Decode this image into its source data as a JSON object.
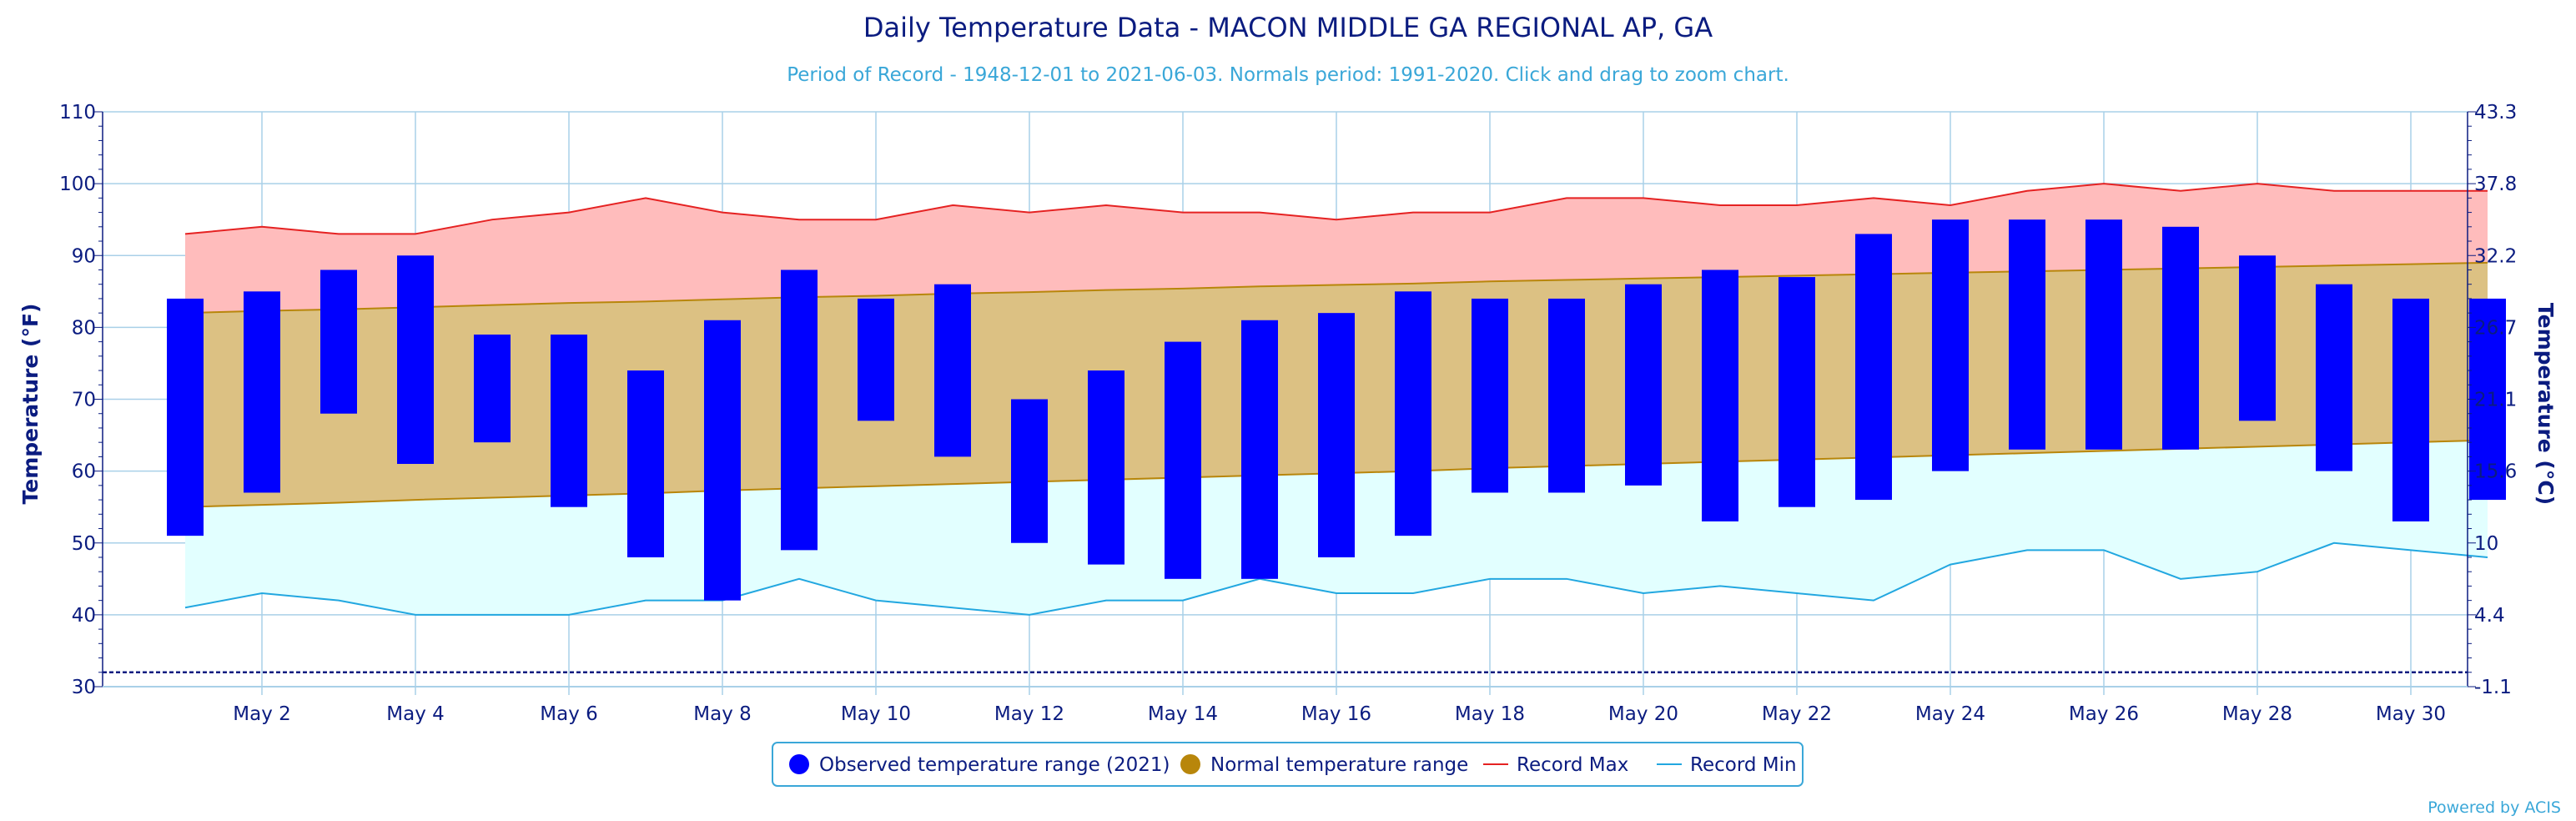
{
  "chart_data": {
    "type": "bar",
    "title": "Daily Temperature Data - MACON MIDDLE GA REGIONAL AP, GA",
    "subtitle": "Period of Record - 1948-12-01 to 2021-06-03. Normals period: 1991-2020. Click and drag to zoom chart.",
    "ylabel_left": "Temperature (°F)",
    "ylabel_right": "Temperature (°C)",
    "ylim": [
      30,
      110
    ],
    "yticks_left": [
      30,
      40,
      50,
      60,
      70,
      80,
      90,
      100,
      110
    ],
    "yticks_right": [
      "-1.1",
      "4.4",
      "10",
      "15.6",
      "21.1",
      "26.7",
      "32.2",
      "37.8",
      "43.3"
    ],
    "x_tick_labels": [
      {
        "day": 2,
        "label": "May 2"
      },
      {
        "day": 4,
        "label": "May 4"
      },
      {
        "day": 6,
        "label": "May 6"
      },
      {
        "day": 8,
        "label": "May 8"
      },
      {
        "day": 10,
        "label": "May 10"
      },
      {
        "day": 12,
        "label": "May 12"
      },
      {
        "day": 14,
        "label": "May 14"
      },
      {
        "day": 16,
        "label": "May 16"
      },
      {
        "day": 18,
        "label": "May 18"
      },
      {
        "day": 20,
        "label": "May 20"
      },
      {
        "day": 22,
        "label": "May 22"
      },
      {
        "day": 24,
        "label": "May 24"
      },
      {
        "day": 26,
        "label": "May 26"
      },
      {
        "day": 28,
        "label": "May 28"
      },
      {
        "day": 30,
        "label": "May 30"
      }
    ],
    "days": [
      1,
      2,
      3,
      4,
      5,
      6,
      7,
      8,
      9,
      10,
      11,
      12,
      13,
      14,
      15,
      16,
      17,
      18,
      19,
      20,
      21,
      22,
      23,
      24,
      25,
      26,
      27,
      28,
      29,
      30,
      31
    ],
    "observed_high": [
      84,
      85,
      88,
      90,
      79,
      79,
      74,
      81,
      88,
      84,
      86,
      70,
      74,
      78,
      81,
      82,
      85,
      84,
      84,
      86,
      88,
      87,
      93,
      95,
      95,
      95,
      94,
      90,
      86,
      84,
      84
    ],
    "observed_low": [
      51,
      57,
      68,
      61,
      64,
      55,
      48,
      42,
      49,
      67,
      62,
      50,
      47,
      45,
      45,
      48,
      51,
      57,
      57,
      58,
      53,
      55,
      56,
      60,
      63,
      63,
      63,
      67,
      60,
      53,
      56
    ],
    "normal_high": [
      82,
      82.3,
      82.5,
      82.8,
      83.1,
      83.4,
      83.6,
      83.9,
      84.2,
      84.4,
      84.7,
      84.9,
      85.2,
      85.4,
      85.7,
      85.9,
      86.1,
      86.4,
      86.6,
      86.8,
      87,
      87.2,
      87.4,
      87.6,
      87.8,
      88,
      88.2,
      88.4,
      88.6,
      88.8,
      89
    ],
    "normal_low": [
      55,
      55.3,
      55.6,
      56,
      56.3,
      56.6,
      56.9,
      57.3,
      57.6,
      57.9,
      58.2,
      58.5,
      58.8,
      59.1,
      59.4,
      59.7,
      60,
      60.4,
      60.7,
      61,
      61.3,
      61.6,
      61.9,
      62.2,
      62.5,
      62.8,
      63.1,
      63.4,
      63.7,
      64,
      64.3
    ],
    "record_max": [
      93,
      94,
      93,
      93,
      95,
      96,
      98,
      96,
      95,
      95,
      97,
      96,
      97,
      96,
      96,
      95,
      96,
      96,
      98,
      98,
      97,
      97,
      98,
      97,
      99,
      100,
      99,
      100,
      99,
      99,
      99
    ],
    "record_min": [
      41,
      43,
      42,
      40,
      40,
      40,
      42,
      42,
      45,
      42,
      41,
      40,
      42,
      42,
      45,
      43,
      43,
      45,
      45,
      43,
      44,
      43,
      42,
      47,
      49,
      49,
      45,
      46,
      50,
      49,
      48
    ],
    "reference_line": 32,
    "legend": [
      {
        "label": "Observed temperature range (2021)",
        "color": "#0000ff",
        "symbol": "circle"
      },
      {
        "label": "Normal temperature range",
        "color": "#b8860b",
        "symbol": "circle"
      },
      {
        "label": "Record Max",
        "color": "#e52222",
        "symbol": "line"
      },
      {
        "label": "Record Min",
        "color": "#22a7e0",
        "symbol": "line"
      }
    ],
    "legend_position": "bottom-center",
    "grid": true,
    "colors": {
      "observed": "#0000ff",
      "normal_fill": "#dcc183",
      "normal_line": "#b8860b",
      "record_band": "#ffbcbc",
      "record_max_line": "#e52222",
      "record_min_band": "#e2ffff",
      "record_min_line": "#22a7e0",
      "grid": "#a9d0e8",
      "text": "#0b1c80",
      "reference": "#0b1c80"
    }
  },
  "credit": "Powered by ACIS"
}
